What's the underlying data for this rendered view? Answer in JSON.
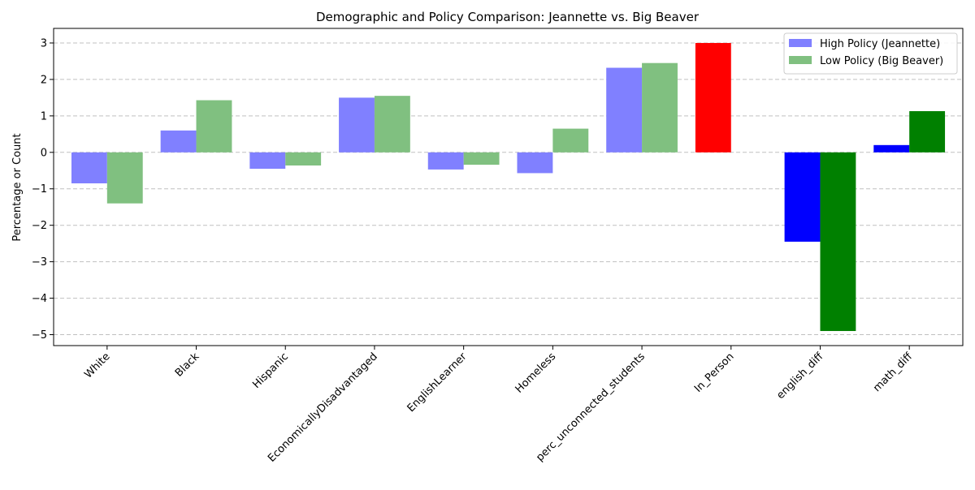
{
  "chart_data": {
    "type": "bar",
    "title": "Demographic and Policy Comparison: Jeannette vs. Big Beaver",
    "xlabel": "",
    "ylabel": "Percentage or Count",
    "ylim": [
      -5.3,
      3.4
    ],
    "yticks": [
      -5,
      -4,
      -3,
      -2,
      -1,
      0,
      1,
      2,
      3
    ],
    "ytick_labels": [
      "−5",
      "−4",
      "−3",
      "−2",
      "−1",
      "0",
      "1",
      "2",
      "3"
    ],
    "grid": "horizontal dashed",
    "legend_position": "top-right",
    "categories": [
      "White",
      "Black",
      "Hispanic",
      "EconomicallyDisadvantaged",
      "EnglishLearner",
      "Homeless",
      "perc_unconnected_students",
      "In_Person",
      "english_diff",
      "math_diff"
    ],
    "series": [
      {
        "name": "High Policy (Jeannette)",
        "color": "#8080ff",
        "values": [
          -0.85,
          0.6,
          -0.45,
          1.5,
          -0.47,
          -0.57,
          2.32,
          3.0,
          -2.45,
          0.2
        ],
        "point_colors": [
          "#8080ff",
          "#8080ff",
          "#8080ff",
          "#8080ff",
          "#8080ff",
          "#8080ff",
          "#8080ff",
          "#ff0000",
          "#0000ff",
          "#0000ff"
        ]
      },
      {
        "name": "Low Policy (Big Beaver)",
        "color": "#80c080",
        "values": [
          -1.4,
          1.43,
          -0.36,
          1.55,
          -0.34,
          0.65,
          2.45,
          0,
          -4.9,
          1.13
        ],
        "point_colors": [
          "#80c080",
          "#80c080",
          "#80c080",
          "#80c080",
          "#80c080",
          "#80c080",
          "#80c080",
          "#008000",
          "#008000",
          "#008000"
        ]
      }
    ]
  }
}
